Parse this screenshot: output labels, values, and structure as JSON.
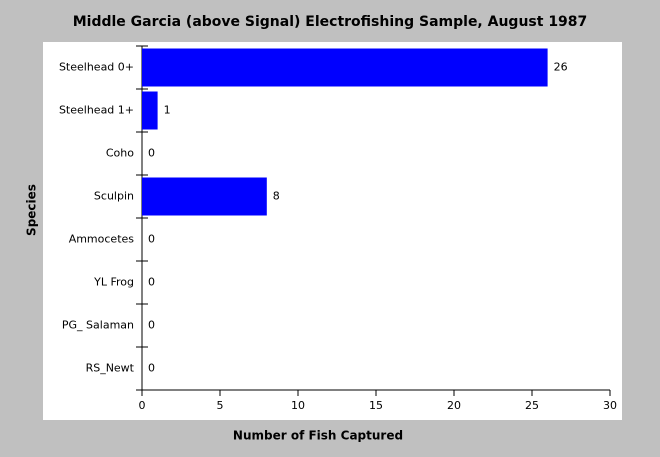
{
  "chart_data": {
    "type": "bar",
    "orientation": "horizontal",
    "title": "Middle Garcia (above Signal) Electrofishing Sample, August 1987",
    "x_label": "Number of Fish Captured",
    "y_label": "Species",
    "categories": [
      "Steelhead 0+",
      "Steelhead 1+",
      "Coho",
      "Sculpin",
      "Ammocetes",
      "YL Frog",
      "PG_ Salaman",
      "RS_Newt"
    ],
    "values": [
      26,
      1,
      0,
      8,
      0,
      0,
      0,
      0
    ],
    "color": "#0000ff",
    "xlim": [
      0,
      30
    ],
    "xticks": [
      0,
      5,
      10,
      15,
      20,
      25,
      30
    ]
  }
}
